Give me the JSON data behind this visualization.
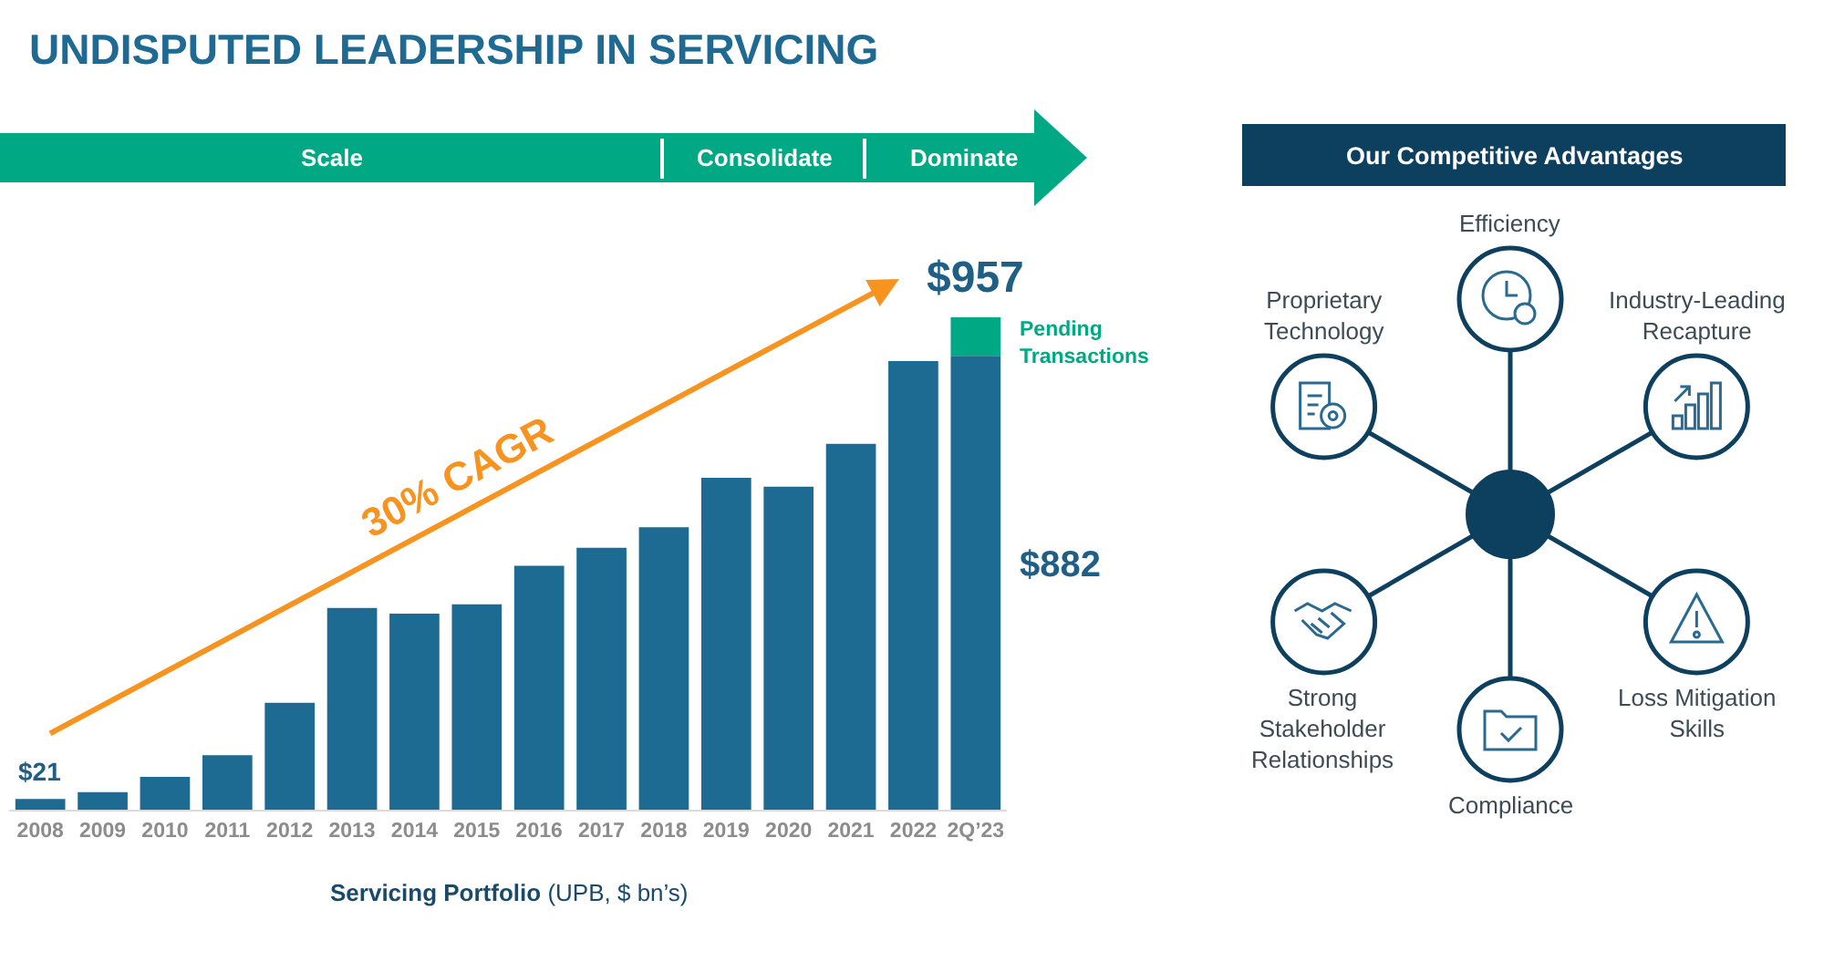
{
  "chart_data": [
    {
      "type": "bar",
      "title": "UNDISPUTED LEADERSHIP IN SERVICING",
      "xlabel": "Servicing Portfolio (UPB, $ bn’s)",
      "categories": [
        "2008",
        "2009",
        "2010",
        "2011",
        "2012",
        "2013",
        "2014",
        "2015",
        "2016",
        "2017",
        "2018",
        "2019",
        "2020",
        "2021",
        "2022",
        "2Q’23"
      ],
      "stacked": true,
      "ylim": [
        0,
        957
      ],
      "tick_labels": "x",
      "series": [
        {
          "color": "#1d6a92",
          "values": [
            21,
            34,
            64,
            106,
            208,
            392,
            381,
            399,
            474,
            509,
            549,
            645,
            628,
            711,
            872,
            882
          ],
          "value_labels": [
            "$21",
            null,
            null,
            null,
            null,
            null,
            null,
            null,
            null,
            null,
            null,
            null,
            null,
            null,
            null,
            null
          ]
        },
        {
          "name": "Pending Transactions",
          "color": "#00a983",
          "values": [
            null,
            null,
            null,
            null,
            null,
            null,
            null,
            null,
            null,
            null,
            null,
            null,
            null,
            null,
            null,
            75
          ]
        }
      ],
      "totals": [
        null,
        null,
        null,
        null,
        null,
        null,
        null,
        null,
        null,
        null,
        null,
        null,
        null,
        null,
        null,
        "$957"
      ],
      "annotations": [
        "30% CAGR",
        "$882",
        "Scale",
        "Consolidate",
        "Dominate"
      ]
    },
    {
      "type": "other",
      "title": "Our Competitive Advantages",
      "categories": [
        "Efficiency",
        "Industry-Leading Recapture",
        "Loss Mitigation Skills",
        "Compliance",
        "Strong Stakeholder Relationships",
        "Proprietary Technology"
      ]
    }
  ]
}
